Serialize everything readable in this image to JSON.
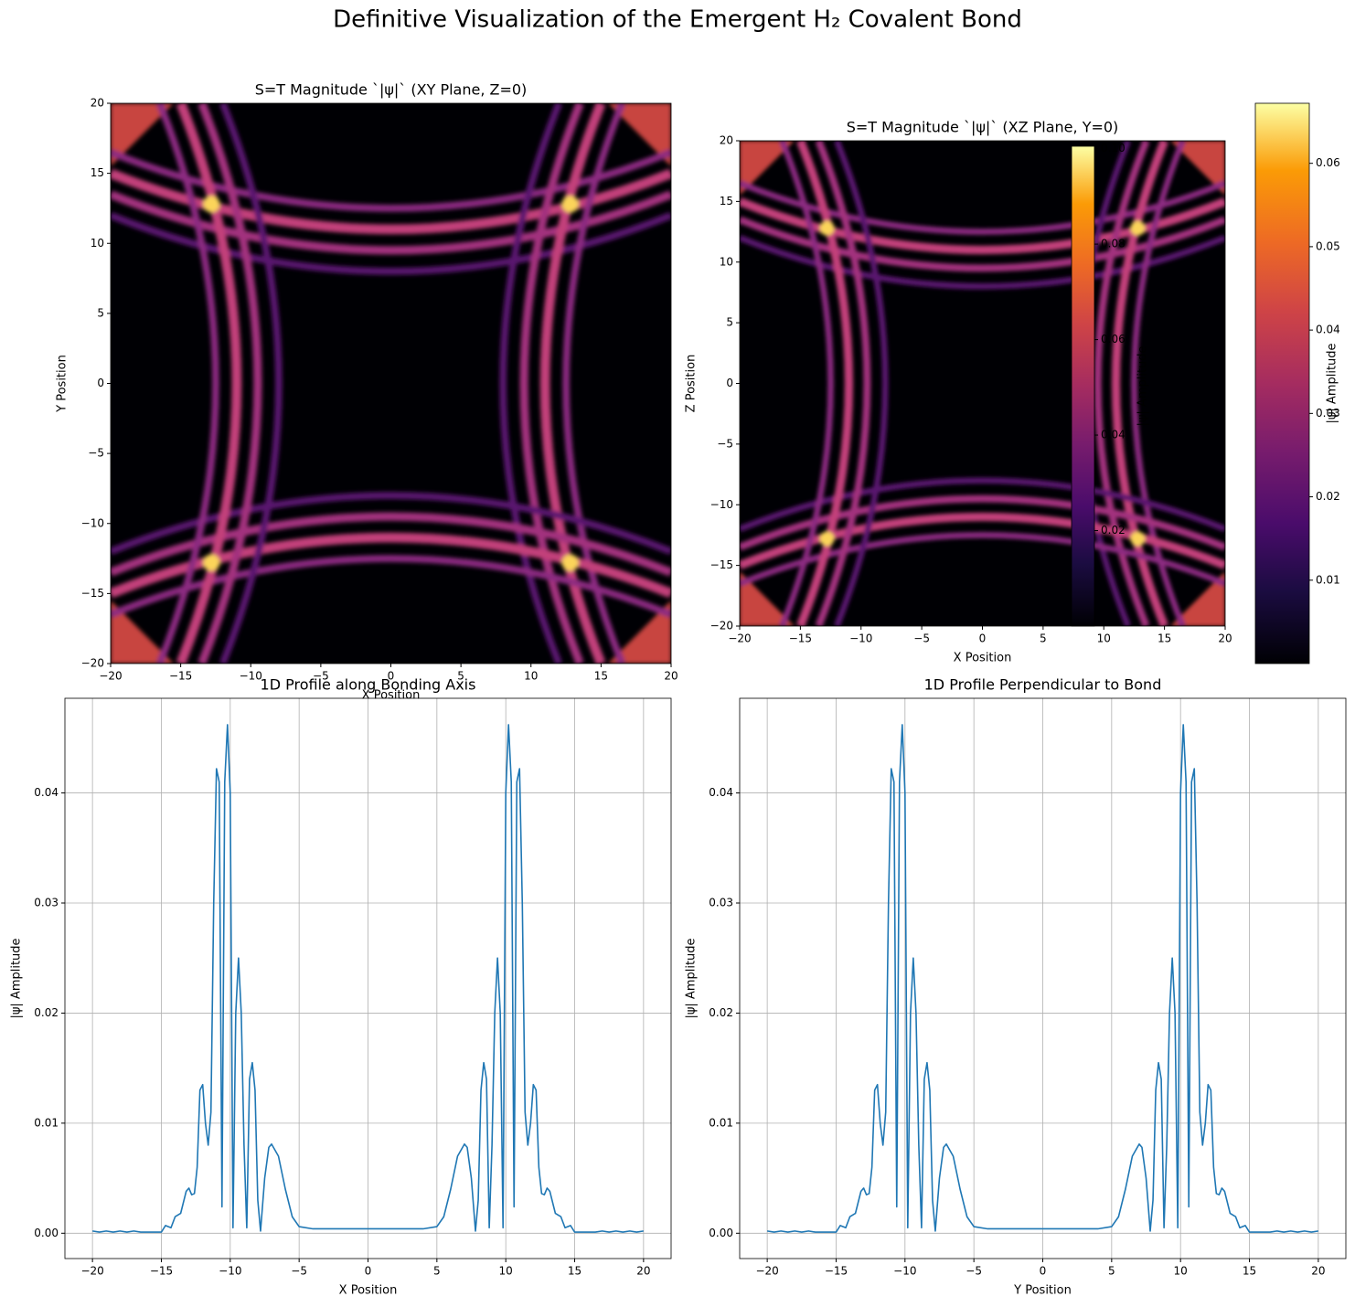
{
  "title": "Definitive Visualization of the Emergent H₂ Covalent Bond",
  "chart_data": [
    {
      "type": "heatmap",
      "title": "S=T Magnitude `|ψ|` (XY Plane, Z=0)",
      "xlabel": "X Position",
      "ylabel": "Y Position",
      "xlim": [
        -20,
        20
      ],
      "ylim": [
        -20,
        20
      ],
      "xticks": [
        {
          "value": -20,
          "label": "−20"
        },
        {
          "value": -15,
          "label": "−15"
        },
        {
          "value": -10,
          "label": "−10"
        },
        {
          "value": -5,
          "label": "−5"
        },
        0,
        5,
        10,
        15,
        20
      ],
      "yticks": [
        {
          "value": -20,
          "label": "−20"
        },
        {
          "value": -15,
          "label": "−15"
        },
        {
          "value": -10,
          "label": "−10"
        },
        {
          "value": -5,
          "label": "−5"
        },
        0,
        5,
        10,
        15,
        20
      ],
      "colormap": "inferno",
      "colorbar": {
        "label": "|ψ| Amplitude",
        "clim": [
          0,
          0.0672
        ],
        "ticks": [
          0.01,
          0.02,
          0.03,
          0.04,
          0.05,
          0.06
        ]
      }
    },
    {
      "type": "heatmap",
      "title": "S=T Magnitude `|ψ|` (XZ Plane, Y=0)",
      "xlabel": "X Position",
      "ylabel": "Z Position",
      "xlim": [
        -20,
        20
      ],
      "ylim": [
        -20,
        20
      ],
      "xticks": [
        {
          "value": -20,
          "label": "−20"
        },
        {
          "value": -15,
          "label": "−15"
        },
        {
          "value": -10,
          "label": "−10"
        },
        {
          "value": -5,
          "label": "−5"
        },
        0,
        5,
        10,
        15,
        20
      ],
      "yticks": [
        {
          "value": -20,
          "label": "−20"
        },
        {
          "value": -15,
          "label": "−15"
        },
        {
          "value": -10,
          "label": "−10"
        },
        {
          "value": -5,
          "label": "−5"
        },
        0,
        5,
        10,
        15,
        20
      ],
      "colormap": "inferno",
      "colorbar": {
        "label": "|ψ| Amplitude",
        "clim": [
          0,
          0.1005
        ],
        "ticks": [
          0.02,
          0.04,
          0.06,
          0.08,
          {
            "value": 0.1,
            "label": "0.10"
          }
        ]
      }
    },
    {
      "type": "line",
      "title": "1D Profile along Bonding Axis",
      "xlabel": "X Position",
      "ylabel": "|ψ| Amplitude",
      "grid": true,
      "xlim": [
        -22,
        22
      ],
      "ylim": [
        -0.0023,
        0.0486
      ],
      "xticks": [
        {
          "value": -20,
          "label": "−20"
        },
        {
          "value": -15,
          "label": "−15"
        },
        {
          "value": -10,
          "label": "−10"
        },
        {
          "value": -5,
          "label": "−5"
        },
        0,
        5,
        10,
        15,
        20
      ],
      "yticks": [
        {
          "value": 0,
          "label": "0.00"
        },
        0.01,
        0.02,
        0.03,
        0.04
      ],
      "color": "#1f77b4",
      "x": [
        -20,
        -19.5,
        -19,
        -18.5,
        -18,
        -17.5,
        -17,
        -16.5,
        -16,
        -15.5,
        -15,
        -14.7,
        -14.3,
        -14,
        -13.6,
        -13.2,
        -13,
        -12.8,
        -12.6,
        -12.4,
        -12.2,
        -12,
        -11.8,
        -11.6,
        -11.4,
        -11.2,
        -11,
        -10.8,
        -10.6,
        -10.4,
        -10.2,
        -10,
        -9.8,
        -9.6,
        -9.4,
        -9.2,
        -9,
        -8.8,
        -8.6,
        -8.4,
        -8.2,
        -8,
        -7.8,
        -7.5,
        -7.2,
        -7,
        -6.5,
        -6,
        -5.5,
        -5,
        -4,
        0,
        4,
        5,
        5.5,
        6,
        6.5,
        7,
        7.2,
        7.5,
        7.8,
        8,
        8.2,
        8.4,
        8.6,
        8.8,
        9,
        9.2,
        9.4,
        9.6,
        9.8,
        10,
        10.2,
        10.4,
        10.6,
        10.8,
        11,
        11.2,
        11.4,
        11.6,
        11.8,
        12,
        12.2,
        12.4,
        12.6,
        12.8,
        13,
        13.2,
        13.6,
        14,
        14.3,
        14.7,
        15,
        15.5,
        16,
        16.5,
        17,
        17.5,
        18,
        18.5,
        19,
        19.5,
        20
      ],
      "values": [
        0.0002,
        0.0001,
        0.0002,
        0.0001,
        0.0002,
        0.0001,
        0.0002,
        0.0001,
        0.0001,
        0.0001,
        0.0001,
        0.0007,
        0.0005,
        0.0015,
        0.0018,
        0.0038,
        0.0041,
        0.0035,
        0.0036,
        0.006,
        0.013,
        0.0135,
        0.01,
        0.008,
        0.011,
        0.03,
        0.0422,
        0.041,
        0.0024,
        0.041,
        0.0462,
        0.04,
        0.0005,
        0.02,
        0.025,
        0.02,
        0.008,
        0.0005,
        0.014,
        0.0155,
        0.013,
        0.003,
        0.0002,
        0.005,
        0.0078,
        0.0081,
        0.007,
        0.004,
        0.0015,
        0.0006,
        0.0004,
        0.0004,
        0.0004,
        0.0006,
        0.0015,
        0.004,
        0.007,
        0.0081,
        0.0078,
        0.005,
        0.0002,
        0.003,
        0.013,
        0.0155,
        0.014,
        0.0005,
        0.008,
        0.02,
        0.025,
        0.02,
        0.0005,
        0.04,
        0.0462,
        0.041,
        0.0024,
        0.041,
        0.0422,
        0.03,
        0.011,
        0.008,
        0.01,
        0.0135,
        0.013,
        0.006,
        0.0036,
        0.0035,
        0.0041,
        0.0038,
        0.0018,
        0.0015,
        0.0005,
        0.0007,
        0.0001,
        0.0001,
        0.0001,
        0.0001,
        0.0002,
        0.0001,
        0.0002,
        0.0001,
        0.0002,
        0.0001,
        0.0002
      ]
    },
    {
      "type": "line",
      "title": "1D Profile Perpendicular to Bond",
      "xlabel": "Y Position",
      "ylabel": "|ψ| Amplitude",
      "grid": true,
      "xlim": [
        -22,
        22
      ],
      "ylim": [
        -0.0023,
        0.0486
      ],
      "xticks": [
        {
          "value": -20,
          "label": "−20"
        },
        {
          "value": -15,
          "label": "−15"
        },
        {
          "value": -10,
          "label": "−10"
        },
        {
          "value": -5,
          "label": "−5"
        },
        0,
        5,
        10,
        15,
        20
      ],
      "yticks": [
        {
          "value": 0,
          "label": "0.00"
        },
        0.01,
        0.02,
        0.03,
        0.04
      ],
      "color": "#1f77b4",
      "x": [
        -20,
        -19.5,
        -19,
        -18.5,
        -18,
        -17.5,
        -17,
        -16.5,
        -16,
        -15.5,
        -15,
        -14.7,
        -14.3,
        -14,
        -13.6,
        -13.2,
        -13,
        -12.8,
        -12.6,
        -12.4,
        -12.2,
        -12,
        -11.8,
        -11.6,
        -11.4,
        -11.2,
        -11,
        -10.8,
        -10.6,
        -10.4,
        -10.2,
        -10,
        -9.8,
        -9.6,
        -9.4,
        -9.2,
        -9,
        -8.8,
        -8.6,
        -8.4,
        -8.2,
        -8,
        -7.8,
        -7.5,
        -7.2,
        -7,
        -6.5,
        -6,
        -5.5,
        -5,
        -4,
        0,
        4,
        5,
        5.5,
        6,
        6.5,
        7,
        7.2,
        7.5,
        7.8,
        8,
        8.2,
        8.4,
        8.6,
        8.8,
        9,
        9.2,
        9.4,
        9.6,
        9.8,
        10,
        10.2,
        10.4,
        10.6,
        10.8,
        11,
        11.2,
        11.4,
        11.6,
        11.8,
        12,
        12.2,
        12.4,
        12.6,
        12.8,
        13,
        13.2,
        13.6,
        14,
        14.3,
        14.7,
        15,
        15.5,
        16,
        16.5,
        17,
        17.5,
        18,
        18.5,
        19,
        19.5,
        20
      ],
      "values": [
        0.0002,
        0.0001,
        0.0002,
        0.0001,
        0.0002,
        0.0001,
        0.0002,
        0.0001,
        0.0001,
        0.0001,
        0.0001,
        0.0007,
        0.0005,
        0.0015,
        0.0018,
        0.0038,
        0.0041,
        0.0035,
        0.0036,
        0.006,
        0.013,
        0.0135,
        0.01,
        0.008,
        0.011,
        0.03,
        0.0422,
        0.041,
        0.0024,
        0.041,
        0.0462,
        0.04,
        0.0005,
        0.02,
        0.025,
        0.02,
        0.008,
        0.0005,
        0.014,
        0.0155,
        0.013,
        0.003,
        0.0002,
        0.005,
        0.0078,
        0.0081,
        0.007,
        0.004,
        0.0015,
        0.0006,
        0.0004,
        0.0004,
        0.0004,
        0.0006,
        0.0015,
        0.004,
        0.007,
        0.0081,
        0.0078,
        0.005,
        0.0002,
        0.003,
        0.013,
        0.0155,
        0.014,
        0.0005,
        0.008,
        0.02,
        0.025,
        0.02,
        0.0005,
        0.04,
        0.0462,
        0.041,
        0.0024,
        0.041,
        0.0422,
        0.03,
        0.011,
        0.008,
        0.01,
        0.0135,
        0.013,
        0.006,
        0.0036,
        0.0035,
        0.0041,
        0.0038,
        0.0018,
        0.0015,
        0.0005,
        0.0007,
        0.0001,
        0.0001,
        0.0001,
        0.0001,
        0.0002,
        0.0001,
        0.0002,
        0.0001,
        0.0002,
        0.0001,
        0.0002
      ]
    }
  ]
}
